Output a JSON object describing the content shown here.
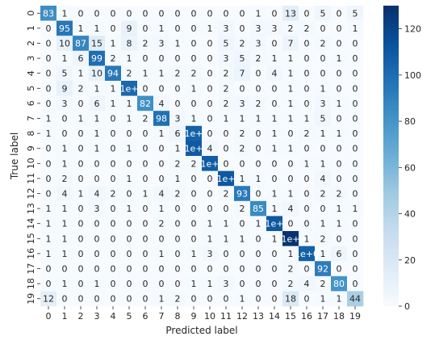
{
  "chart_data": {
    "type": "heatmap",
    "title": "",
    "xlabel": "Predicted label",
    "ylabel": "True label",
    "x_categories": [
      "0",
      "1",
      "2",
      "3",
      "4",
      "5",
      "6",
      "7",
      "8",
      "9",
      "10",
      "11",
      "12",
      "13",
      "14",
      "15",
      "16",
      "17",
      "18",
      "19"
    ],
    "y_categories": [
      "0",
      "1",
      "2",
      "3",
      "4",
      "5",
      "6",
      "7",
      "8",
      "9",
      "10",
      "11",
      "12",
      "13",
      "14",
      "15",
      "16",
      "17",
      "18",
      "19"
    ],
    "values": [
      [
        83,
        1,
        0,
        0,
        0,
        0,
        0,
        0,
        0,
        0,
        0,
        0,
        0,
        1,
        0,
        13,
        0,
        5,
        0,
        5
      ],
      [
        0,
        95,
        1,
        1,
        0,
        9,
        0,
        1,
        0,
        0,
        1,
        3,
        0,
        3,
        3,
        2,
        2,
        0,
        0,
        1
      ],
      [
        0,
        10,
        87,
        15,
        1,
        8,
        2,
        3,
        1,
        0,
        0,
        5,
        2,
        3,
        0,
        7,
        0,
        2,
        0,
        0
      ],
      [
        0,
        1,
        6,
        99,
        2,
        1,
        0,
        0,
        0,
        0,
        0,
        3,
        5,
        2,
        1,
        1,
        0,
        0,
        1,
        0
      ],
      [
        0,
        5,
        1,
        10,
        94,
        2,
        1,
        1,
        2,
        2,
        0,
        2,
        7,
        0,
        4,
        1,
        0,
        0,
        0,
        0
      ],
      [
        0,
        9,
        2,
        1,
        1,
        102,
        0,
        0,
        0,
        1,
        0,
        2,
        0,
        0,
        0,
        1,
        0,
        1,
        0,
        0
      ],
      [
        0,
        3,
        0,
        6,
        1,
        1,
        82,
        4,
        0,
        0,
        0,
        2,
        3,
        2,
        0,
        1,
        0,
        3,
        1,
        0
      ],
      [
        1,
        0,
        1,
        1,
        0,
        1,
        2,
        98,
        3,
        1,
        0,
        1,
        1,
        1,
        1,
        1,
        1,
        5,
        0,
        0
      ],
      [
        1,
        0,
        0,
        1,
        0,
        0,
        0,
        1,
        6,
        105,
        0,
        0,
        2,
        0,
        1,
        0,
        2,
        1,
        1,
        0
      ],
      [
        0,
        1,
        0,
        1,
        0,
        1,
        0,
        0,
        1,
        109,
        4,
        0,
        2,
        0,
        1,
        1,
        0,
        0,
        0,
        0
      ],
      [
        0,
        1,
        0,
        0,
        0,
        0,
        0,
        0,
        2,
        2,
        108,
        0,
        0,
        0,
        0,
        0,
        1,
        1,
        0,
        0
      ],
      [
        0,
        2,
        0,
        0,
        0,
        1,
        0,
        0,
        1,
        0,
        0,
        110,
        1,
        1,
        0,
        0,
        0,
        4,
        0,
        0
      ],
      [
        0,
        4,
        1,
        4,
        2,
        0,
        1,
        4,
        2,
        0,
        0,
        2,
        93,
        0,
        1,
        1,
        0,
        2,
        2,
        0
      ],
      [
        1,
        1,
        0,
        3,
        0,
        1,
        0,
        1,
        0,
        0,
        0,
        0,
        2,
        85,
        1,
        4,
        0,
        0,
        1,
        1
      ],
      [
        1,
        1,
        0,
        0,
        0,
        0,
        0,
        2,
        0,
        0,
        1,
        1,
        0,
        1,
        110,
        0,
        0,
        1,
        1,
        0
      ],
      [
        1,
        1,
        0,
        0,
        0,
        0,
        0,
        0,
        0,
        0,
        1,
        1,
        1,
        0,
        1,
        128,
        1,
        2,
        0,
        0
      ],
      [
        1,
        1,
        0,
        0,
        0,
        0,
        0,
        1,
        0,
        1,
        3,
        0,
        0,
        0,
        0,
        1,
        106,
        1,
        6,
        0
      ],
      [
        0,
        0,
        0,
        0,
        0,
        0,
        0,
        0,
        0,
        0,
        0,
        0,
        0,
        0,
        0,
        2,
        0,
        92,
        0,
        0
      ],
      [
        0,
        1,
        0,
        1,
        0,
        0,
        0,
        0,
        0,
        1,
        1,
        3,
        0,
        0,
        0,
        2,
        4,
        2,
        80,
        0
      ],
      [
        12,
        0,
        0,
        0,
        0,
        0,
        0,
        1,
        2,
        0,
        0,
        0,
        1,
        0,
        0,
        18,
        0,
        1,
        1,
        44
      ]
    ],
    "cell_labels": [
      [
        "83",
        "1",
        "0",
        "0",
        "0",
        "0",
        "0",
        "0",
        "0",
        "0",
        "0",
        "0",
        "0",
        "1",
        "0",
        "13",
        "0",
        "5",
        "0",
        "5"
      ],
      [
        "0",
        "95",
        "1",
        "1",
        "0",
        "9",
        "0",
        "1",
        "0",
        "0",
        "1",
        "3",
        "0",
        "3",
        "3",
        "2",
        "2",
        "0",
        "0",
        "1"
      ],
      [
        "0",
        "10",
        "87",
        "15",
        "1",
        "8",
        "2",
        "3",
        "1",
        "0",
        "0",
        "5",
        "2",
        "3",
        "0",
        "7",
        "0",
        "2",
        "0",
        "0"
      ],
      [
        "0",
        "1",
        "6",
        "99",
        "2",
        "1",
        "0",
        "0",
        "0",
        "0",
        "0",
        "3",
        "5",
        "2",
        "1",
        "1",
        "0",
        "0",
        "1",
        "0"
      ],
      [
        "0",
        "5",
        "1",
        "10",
        "94",
        "2",
        "1",
        "1",
        "2",
        "2",
        "0",
        "2",
        "7",
        "0",
        "4",
        "1",
        "0",
        "0",
        "0",
        "0"
      ],
      [
        "0",
        "9",
        "2",
        "1",
        "1",
        "1e+",
        "0",
        "0",
        "0",
        "1",
        "0",
        "2",
        "0",
        "0",
        "0",
        "1",
        "0",
        "1",
        "0",
        "0"
      ],
      [
        "0",
        "3",
        "0",
        "6",
        "1",
        "1",
        "82",
        "4",
        "0",
        "0",
        "0",
        "2",
        "3",
        "2",
        "0",
        "1",
        "0",
        "3",
        "1",
        "0"
      ],
      [
        "1",
        "0",
        "1",
        "1",
        "0",
        "1",
        "2",
        "98",
        "3",
        "1",
        "0",
        "1",
        "1",
        "1",
        "1",
        "1",
        "1",
        "5",
        "0",
        "0"
      ],
      [
        "1",
        "0",
        "0",
        "1",
        "0",
        "0",
        "0",
        "1",
        "6",
        "1e+",
        "0",
        "0",
        "2",
        "0",
        "1",
        "0",
        "2",
        "1",
        "1",
        "0"
      ],
      [
        "0",
        "1",
        "0",
        "1",
        "0",
        "1",
        "0",
        "0",
        "1",
        "1e+",
        "4",
        "0",
        "2",
        "0",
        "1",
        "1",
        "0",
        "0",
        "0",
        "0"
      ],
      [
        "0",
        "1",
        "0",
        "0",
        "0",
        "0",
        "0",
        "0",
        "2",
        "2",
        "1e+",
        "0",
        "0",
        "0",
        "0",
        "0",
        "1",
        "1",
        "0",
        "0"
      ],
      [
        "0",
        "2",
        "0",
        "0",
        "0",
        "1",
        "0",
        "0",
        "1",
        "0",
        "0",
        "1e+",
        "1",
        "1",
        "0",
        "0",
        "0",
        "4",
        "0",
        "0"
      ],
      [
        "0",
        "4",
        "1",
        "4",
        "2",
        "0",
        "1",
        "4",
        "2",
        "0",
        "0",
        "2",
        "93",
        "0",
        "1",
        "1",
        "0",
        "2",
        "2",
        "0"
      ],
      [
        "1",
        "1",
        "0",
        "3",
        "0",
        "1",
        "0",
        "1",
        "0",
        "0",
        "0",
        "0",
        "2",
        "85",
        "1",
        "4",
        "0",
        "0",
        "1",
        "1"
      ],
      [
        "1",
        "1",
        "0",
        "0",
        "0",
        "0",
        "0",
        "2",
        "0",
        "0",
        "1",
        "1",
        "0",
        "1",
        "1e+",
        "0",
        "0",
        "1",
        "1",
        "0"
      ],
      [
        "1",
        "1",
        "0",
        "0",
        "0",
        "0",
        "0",
        "0",
        "0",
        "0",
        "1",
        "1",
        "1",
        "0",
        "1",
        "1e+",
        "1",
        "2",
        "0",
        "0"
      ],
      [
        "1",
        "1",
        "0",
        "0",
        "0",
        "0",
        "0",
        "1",
        "0",
        "1",
        "3",
        "0",
        "0",
        "0",
        "0",
        "1",
        "1e+0",
        "1",
        "6",
        "0"
      ],
      [
        "0",
        "0",
        "0",
        "0",
        "0",
        "0",
        "0",
        "0",
        "0",
        "0",
        "0",
        "0",
        "0",
        "0",
        "0",
        "2",
        "0",
        "92",
        "0",
        "0"
      ],
      [
        "0",
        "1",
        "0",
        "1",
        "0",
        "0",
        "0",
        "0",
        "0",
        "1",
        "1",
        "3",
        "0",
        "0",
        "0",
        "2",
        "4",
        "2",
        "80",
        "0"
      ],
      [
        "12",
        "0",
        "0",
        "0",
        "0",
        "0",
        "0",
        "1",
        "2",
        "0",
        "0",
        "0",
        "1",
        "0",
        "0",
        "18",
        "0",
        "1",
        "1",
        "44"
      ]
    ],
    "colormap": "Blues",
    "color_range": [
      0,
      130
    ],
    "colorbar_ticks": [
      "0",
      "20",
      "40",
      "60",
      "80",
      "100",
      "120"
    ],
    "colors": {
      "low": "#f7fbff",
      "high": "#08306b",
      "text_dark": "#262626",
      "text_light": "#ffffff"
    }
  }
}
